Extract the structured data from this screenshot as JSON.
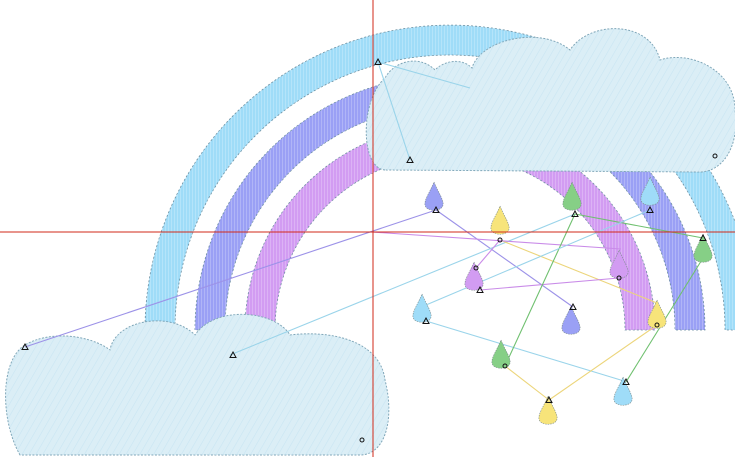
{
  "design": {
    "palette": {
      "background": "#ffffff",
      "cloud_fill": "#dbeef6",
      "cloud_outline": "#7fa6b8",
      "cloud_stitch": "#b9dcec",
      "rainbow_outer": "#9fdcf8",
      "rainbow_middle": "#9aa0f5",
      "rainbow_inner": "#d29cf2",
      "guide_line": "#d22a1a",
      "drop_blue": "#9fdcf8",
      "drop_purple": "#9aa0f5",
      "drop_violet": "#d29cf2",
      "drop_yellow": "#f7e47a",
      "drop_green": "#86cf86",
      "jump_blue": "#9ad4ea",
      "jump_purple": "#9c92e8",
      "jump_violet": "#c98be8",
      "jump_yellow": "#ecd57a",
      "jump_green": "#6fc06f"
    },
    "icons": [
      "start-marker-icon",
      "end-marker-icon"
    ]
  }
}
